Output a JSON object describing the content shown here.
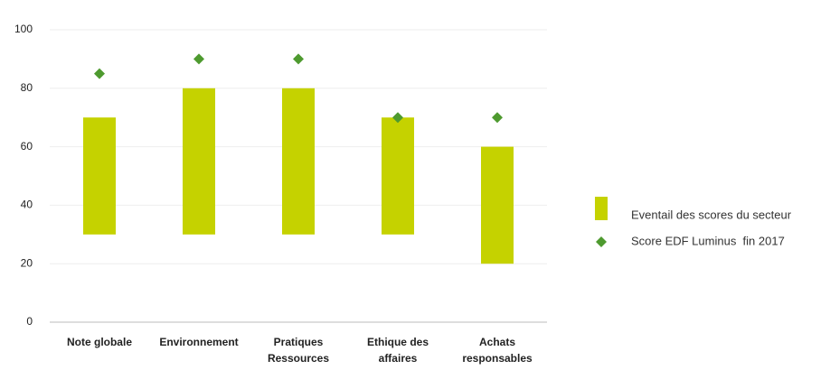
{
  "chart_data": {
    "type": "range-bar",
    "categories": [
      [
        "Note globale"
      ],
      [
        "Environnement"
      ],
      [
        "Pratiques",
        "Ressources"
      ],
      [
        "Ethique des",
        "affaires"
      ],
      [
        "Achats",
        "responsables"
      ]
    ],
    "series": [
      {
        "name": "Eventail des scores du secteur",
        "color": "#c5d200",
        "low": [
          30,
          30,
          30,
          30,
          20
        ],
        "high": [
          70,
          80,
          80,
          70,
          60
        ]
      },
      {
        "name": "Score EDF Luminus  fin 2017",
        "color": "#4e9a2f",
        "marker": "diamond",
        "values": [
          85,
          90,
          90,
          70,
          70
        ]
      }
    ],
    "ylim": [
      0,
      100
    ],
    "yticks": [
      0,
      20,
      40,
      60,
      80,
      100
    ],
    "grid": true,
    "legend": "right"
  }
}
